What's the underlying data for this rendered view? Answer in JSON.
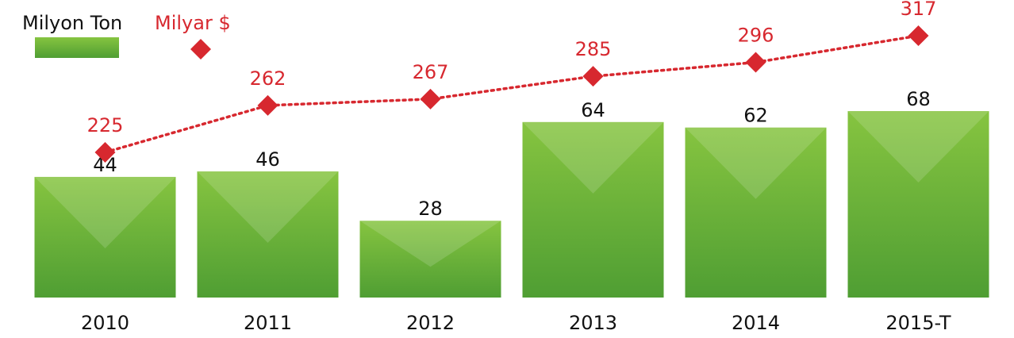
{
  "chart_data": {
    "type": "bar",
    "categories": [
      "2010",
      "2011",
      "2012",
      "2013",
      "2014",
      "2015-T"
    ],
    "series": [
      {
        "name": "Milyon Ton",
        "color": "#6db33f",
        "values": [
          44,
          46,
          28,
          64,
          62,
          68
        ]
      },
      {
        "name": "Milyar $",
        "color": "#d7282f",
        "type": "line",
        "axis": "y2",
        "values": [
          225,
          262,
          267,
          285,
          296,
          317
        ]
      }
    ]
  }
}
